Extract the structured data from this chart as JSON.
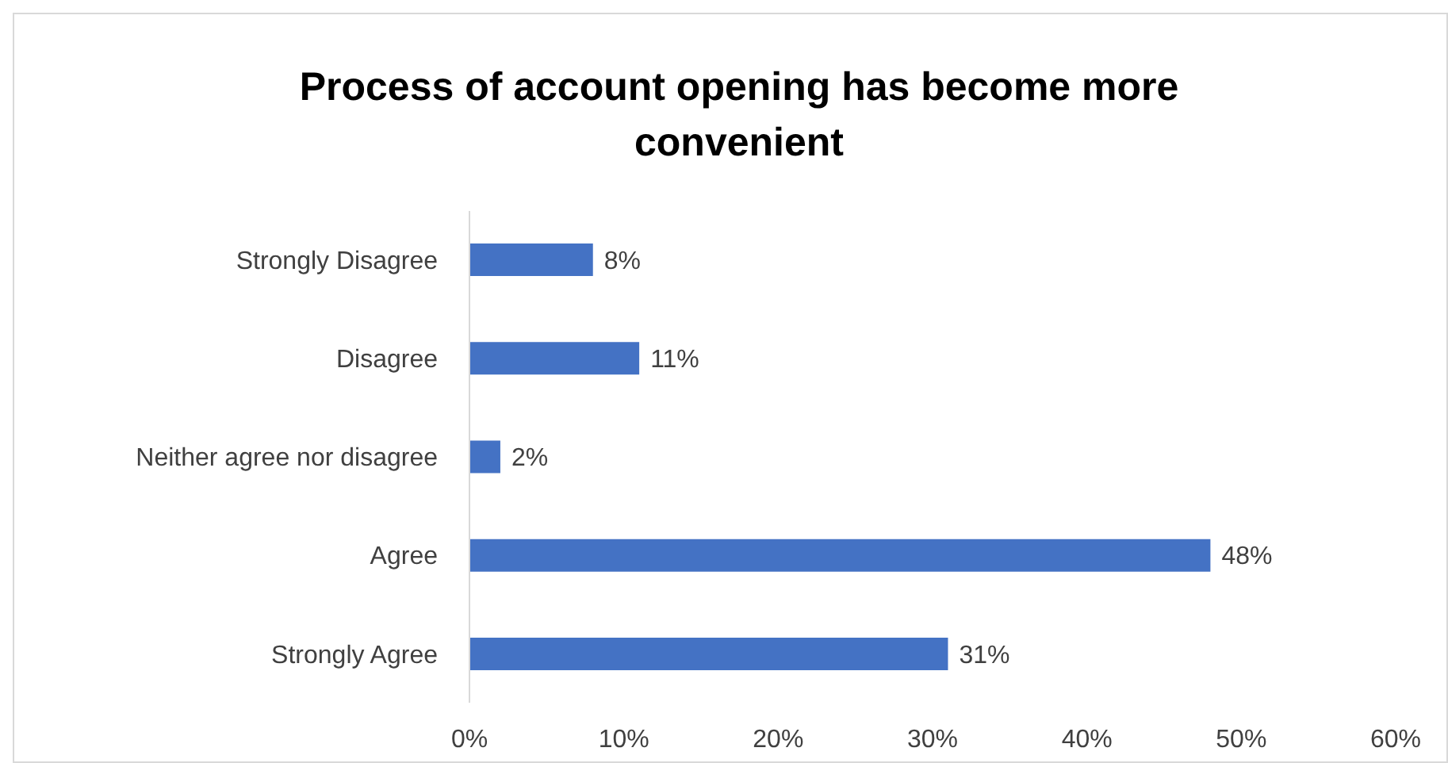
{
  "chart_data": {
    "type": "bar",
    "orientation": "horizontal",
    "title": "Process of account opening has become more convenient",
    "categories": [
      "Strongly Disagree",
      "Disagree",
      "Neither agree nor disagree",
      "Agree",
      "Strongly Agree"
    ],
    "values": [
      8,
      11,
      2,
      48,
      31
    ],
    "color": "#4472c4",
    "value_labels": [
      "8%",
      "11%",
      "2%",
      "48%",
      "31%"
    ],
    "xlim": [
      0,
      60
    ],
    "xticks": [
      {
        "value": 0,
        "label": "0%"
      },
      {
        "value": 10,
        "label": "10%"
      },
      {
        "value": 20,
        "label": "20%"
      },
      {
        "value": 30,
        "label": "30%"
      },
      {
        "value": 40,
        "label": "40%"
      },
      {
        "value": 50,
        "label": "50%"
      },
      {
        "value": 60,
        "label": "60%"
      }
    ],
    "grid": false
  }
}
